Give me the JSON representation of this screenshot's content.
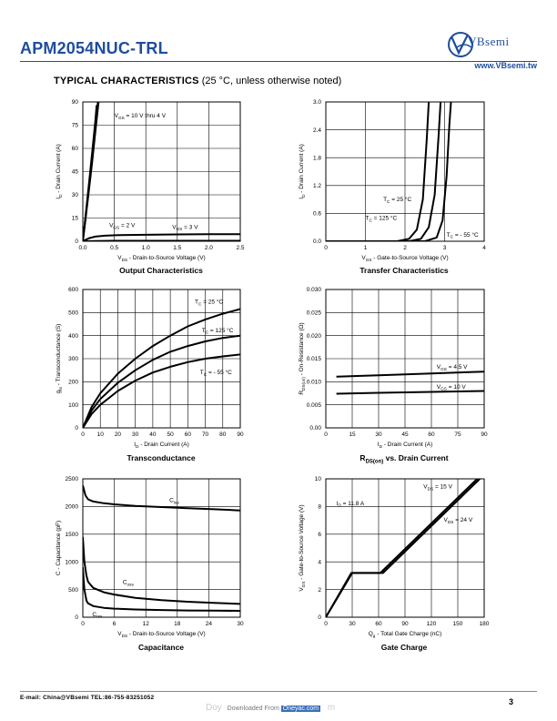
{
  "header": {
    "part_number": "APM2054NUC-TRL",
    "brand": "VBsemi",
    "website": "www.VBsemi.tw"
  },
  "section": {
    "title_bold": "TYPICAL CHARACTERISTICS",
    "title_rest": " (25 °C, unless otherwise noted)"
  },
  "footer": {
    "contact": "E-mail:  China@VBsemi   TEL:86-755-83251052",
    "page": "3",
    "download_prefix": "Doy",
    "download_text": "Downloaded From",
    "download_site": "Oneyac.com",
    "download_suffix": "m"
  },
  "chart_data": [
    {
      "id": "output",
      "type": "line",
      "title": "Output Characteristics",
      "xlabel": "V_DS - Drain-to-Source Voltage (V)",
      "ylabel": "I_D - Drain Current (A)",
      "xlim": [
        0,
        2.5
      ],
      "ylim": [
        0,
        90
      ],
      "xticks": [
        "0.0",
        "0.5",
        "1.0",
        "1.5",
        "2.0",
        "2.5"
      ],
      "yticks": [
        "0",
        "15",
        "30",
        "45",
        "60",
        "75",
        "90"
      ],
      "grid": true,
      "series": [
        {
          "name": "V_GS = 10 V thru 4 V",
          "x": [
            0,
            0.05,
            0.1,
            0.15,
            0.2,
            0.25
          ],
          "y": [
            0,
            17,
            34,
            52,
            71,
            90
          ]
        },
        {
          "name": "V_GS = 10 V thru 4 V",
          "x": [
            0,
            0.05,
            0.1,
            0.15,
            0.2,
            0.22
          ],
          "y": [
            0,
            19,
            38,
            58,
            78,
            88
          ]
        },
        {
          "name": "V_GS = 10 V thru 4 V",
          "x": [
            0,
            0.05,
            0.1,
            0.15,
            0.2,
            0.24
          ],
          "y": [
            0,
            18,
            36,
            55,
            74,
            90
          ]
        },
        {
          "name": "V_GS = 3 V",
          "x": [
            0,
            0.1,
            0.2,
            0.35,
            0.6,
            1.0,
            1.5,
            2.0,
            2.5
          ],
          "y": [
            0,
            2.0,
            3.0,
            3.6,
            4.0,
            4.2,
            4.4,
            4.5,
            4.6
          ]
        },
        {
          "name": "V_GS = 2 V",
          "x": [
            0,
            0.2,
            0.5,
            1.0,
            1.5,
            2.0,
            2.5
          ],
          "y": [
            0,
            0.2,
            0.3,
            0.3,
            0.3,
            0.3,
            0.3
          ]
        }
      ],
      "annotations": [
        {
          "text": "V_GS = 10 V thru 4 V",
          "x": 0.5,
          "y": 80
        },
        {
          "text": "V_GS = 2 V",
          "x": 0.42,
          "y": 9
        },
        {
          "text": "V_GS = 3 V",
          "x": 1.42,
          "y": 8
        }
      ]
    },
    {
      "id": "transfer",
      "type": "line",
      "title": "Transfer Characteristics",
      "xlabel": "V_GS - Gate-to-Source Voltage (V)",
      "ylabel": "I_D - Drain Current (A)",
      "xlim": [
        0,
        4
      ],
      "ylim": [
        0,
        3.0
      ],
      "xticks": [
        "0",
        "1",
        "2",
        "3",
        "4"
      ],
      "yticks": [
        "0.0",
        "0.6",
        "1.2",
        "1.8",
        "2.4",
        "3.0"
      ],
      "grid": true,
      "series": [
        {
          "name": "T_C = 125 °C",
          "x": [
            0,
            1.8,
            2.1,
            2.3,
            2.45,
            2.55,
            2.6
          ],
          "y": [
            0,
            0,
            0.05,
            0.25,
            0.9,
            2.2,
            3.0
          ]
        },
        {
          "name": "T_C = 25 °C",
          "x": [
            0,
            2.1,
            2.4,
            2.6,
            2.75,
            2.85,
            2.9
          ],
          "y": [
            0,
            0,
            0.05,
            0.3,
            1.0,
            2.3,
            3.0
          ]
        },
        {
          "name": "T_C = - 55 °C",
          "x": [
            0,
            2.5,
            2.8,
            2.95,
            3.05,
            3.12,
            3.16
          ],
          "y": [
            0,
            0,
            0.08,
            0.45,
            1.4,
            2.5,
            3.0
          ]
        }
      ],
      "annotations": [
        {
          "text": "T_C = 25 °C",
          "x": 1.45,
          "y": 0.86
        },
        {
          "text": "T_C = 125 °C",
          "x": 1.0,
          "y": 0.46
        },
        {
          "text": "T_C = - 55 °C",
          "x": 3.05,
          "y": 0.1
        }
      ]
    },
    {
      "id": "transconductance",
      "type": "line",
      "title": "Transconductance",
      "xlabel": "I_D - Drain Current (A)",
      "ylabel": "g_fs - Transconductance (S)",
      "xlim": [
        0,
        90
      ],
      "ylim": [
        0,
        600
      ],
      "xticks": [
        "0",
        "10",
        "20",
        "30",
        "40",
        "50",
        "60",
        "70",
        "80",
        "90"
      ],
      "yticks": [
        "0",
        "100",
        "200",
        "300",
        "400",
        "500",
        "600"
      ],
      "grid": true,
      "series": [
        {
          "name": "T_C = 25 °C",
          "x": [
            0,
            5,
            10,
            20,
            30,
            40,
            50,
            60,
            70,
            80,
            90
          ],
          "y": [
            0,
            90,
            150,
            235,
            300,
            355,
            400,
            440,
            470,
            495,
            515
          ]
        },
        {
          "name": "T_C = 125 °C",
          "x": [
            0,
            5,
            10,
            20,
            30,
            40,
            50,
            60,
            70,
            80,
            90
          ],
          "y": [
            0,
            75,
            125,
            195,
            250,
            295,
            330,
            355,
            375,
            390,
            400
          ]
        },
        {
          "name": "T_C = - 55 °C",
          "x": [
            0,
            5,
            10,
            20,
            30,
            40,
            50,
            60,
            70,
            80,
            90
          ],
          "y": [
            0,
            60,
            100,
            160,
            205,
            240,
            265,
            285,
            300,
            310,
            318
          ]
        }
      ],
      "annotations": [
        {
          "text": "T_C = 25 °C",
          "x": 64,
          "y": 538
        },
        {
          "text": "T_C = 125 °C",
          "x": 68,
          "y": 415
        },
        {
          "text": "T_C = - 55 °C",
          "x": 67,
          "y": 232
        }
      ]
    },
    {
      "id": "rdson",
      "type": "line",
      "title": "R_DS(on) vs. Drain Current",
      "xlabel": "I_D - Drain Current (A)",
      "ylabel": "R_DS(on) - On-Resistance (Ω)",
      "xlim": [
        0,
        90
      ],
      "ylim": [
        0,
        0.03
      ],
      "xticks": [
        "0",
        "15",
        "30",
        "45",
        "60",
        "75",
        "90"
      ],
      "yticks": [
        "0.00",
        "0.005",
        "0.010",
        "0.015",
        "0.020",
        "0.025",
        "0.030"
      ],
      "grid": true,
      "series": [
        {
          "name": "V_GS = 4.5 V",
          "x": [
            6,
            30,
            60,
            90
          ],
          "y": [
            0.0111,
            0.0114,
            0.0118,
            0.0122
          ]
        },
        {
          "name": "V_GS = 10 V",
          "x": [
            6,
            30,
            60,
            90
          ],
          "y": [
            0.0074,
            0.0076,
            0.0078,
            0.008
          ]
        }
      ],
      "annotations": [
        {
          "text": "V_GS = 4.5 V",
          "x": 63,
          "y": 0.0128
        },
        {
          "text": "V_GS = 10 V",
          "x": 63,
          "y": 0.0085
        }
      ]
    },
    {
      "id": "capacitance",
      "type": "line",
      "title": "Capacitance",
      "xlabel": "V_DS - Drain-to-Source Voltage (V)",
      "ylabel": "C - Capacitance (pF)",
      "xlim": [
        0,
        30
      ],
      "ylim": [
        0,
        2500
      ],
      "xticks": [
        "0",
        "6",
        "12",
        "18",
        "24",
        "30"
      ],
      "yticks": [
        "0",
        "500",
        "1000",
        "1500",
        "2000",
        "2500"
      ],
      "grid": true,
      "series": [
        {
          "name": "C_iss",
          "x": [
            0,
            0.5,
            1,
            2,
            4,
            6,
            10,
            15,
            20,
            25,
            30
          ],
          "y": [
            2380,
            2200,
            2130,
            2090,
            2060,
            2040,
            2010,
            1990,
            1970,
            1950,
            1930
          ]
        },
        {
          "name": "C_oss",
          "x": [
            0,
            0.3,
            0.7,
            1,
            2,
            4,
            6,
            10,
            15,
            20,
            25,
            30
          ],
          "y": [
            1450,
            1000,
            750,
            640,
            530,
            450,
            410,
            350,
            310,
            280,
            260,
            240
          ]
        },
        {
          "name": "C_rss",
          "x": [
            0,
            0.3,
            0.7,
            1,
            2,
            4,
            6,
            10,
            15,
            20,
            25,
            30
          ],
          "y": [
            900,
            500,
            300,
            250,
            200,
            170,
            155,
            140,
            130,
            122,
            118,
            115
          ]
        }
      ],
      "annotations": [
        {
          "text": "C_iss",
          "x": 16.5,
          "y": 2080
        },
        {
          "text": "C_oss",
          "x": 7.6,
          "y": 600
        },
        {
          "text": "C_rss",
          "x": 1.8,
          "y": 18
        }
      ]
    },
    {
      "id": "gatecharge",
      "type": "line",
      "title": "Gate Charge",
      "xlabel": "Q_g - Total Gate Charge (nC)",
      "ylabel": "V_GS - Gate-to-Source Voltage (V)",
      "xlim": [
        0,
        180
      ],
      "ylim": [
        0,
        10
      ],
      "xticks": [
        "0",
        "30",
        "60",
        "90",
        "120",
        "150",
        "180"
      ],
      "yticks": [
        "0",
        "2",
        "4",
        "6",
        "8",
        "10"
      ],
      "grid": true,
      "series": [
        {
          "name": "V_DS = 15 V",
          "x": [
            0,
            29,
            62,
            172
          ],
          "y": [
            0,
            3.2,
            3.2,
            10
          ]
        },
        {
          "name": "V_DS = 24 V",
          "x": [
            0,
            30,
            65,
            175
          ],
          "y": [
            0,
            3.2,
            3.2,
            10
          ]
        }
      ],
      "annotations": [
        {
          "text": "I_D = 11.8 A",
          "x": 12,
          "y": 8.1
        },
        {
          "text": "V_DS = 15 V",
          "x": 111,
          "y": 9.3
        },
        {
          "text": "V_DS = 24 V",
          "x": 134,
          "y": 6.9
        }
      ]
    }
  ]
}
